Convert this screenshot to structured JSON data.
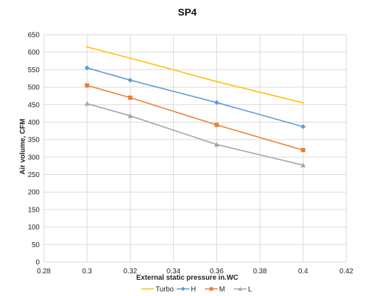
{
  "chart_data": {
    "type": "line",
    "title": "SP4",
    "xlabel": "External static pressure  in.WC",
    "ylabel": "Air volume, CFM",
    "xlim": [
      0.28,
      0.42
    ],
    "ylim": [
      0,
      650
    ],
    "x_ticks": [
      "0.28",
      "0.3",
      "0.32",
      "0.34",
      "0.36",
      "0.38",
      "0.4",
      "0.42"
    ],
    "y_ticks": [
      "0",
      "50",
      "100",
      "150",
      "200",
      "250",
      "300",
      "350",
      "400",
      "450",
      "500",
      "550",
      "600",
      "650"
    ],
    "grid": true,
    "legend_position": "bottom",
    "x": [
      0.3,
      0.32,
      0.36,
      0.4
    ],
    "series": [
      {
        "name": "Turbo",
        "color": "#FFC000",
        "marker": "none",
        "values": [
          615,
          583,
          516,
          455
        ]
      },
      {
        "name": "H",
        "color": "#5B9BD5",
        "marker": "diamond",
        "values": [
          555,
          520,
          456,
          387
        ]
      },
      {
        "name": "M",
        "color": "#ED7D31",
        "marker": "square",
        "values": [
          505,
          470,
          392,
          320
        ]
      },
      {
        "name": "L",
        "color": "#A5A5A5",
        "marker": "triangle",
        "values": [
          453,
          418,
          336,
          277
        ]
      }
    ]
  }
}
